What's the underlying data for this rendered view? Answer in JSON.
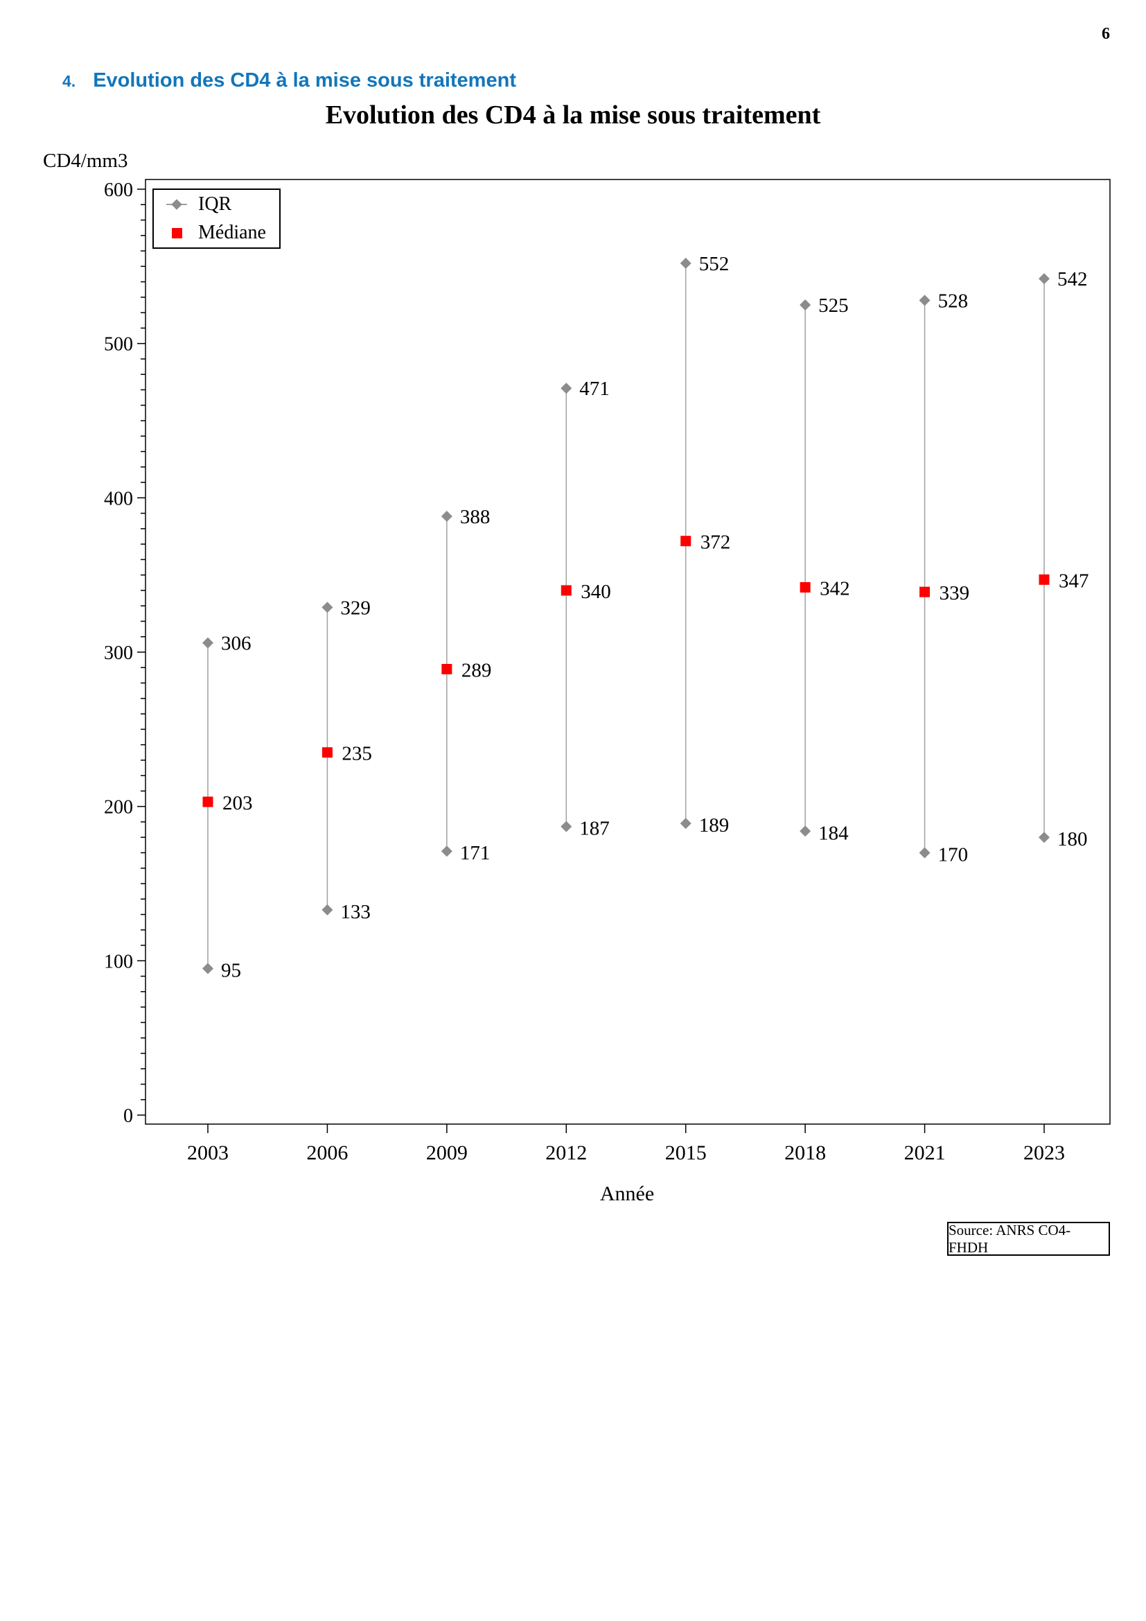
{
  "page": {
    "number": "6"
  },
  "heading": {
    "number": "4.",
    "text": "Evolution des CD4 à la mise sous traitement"
  },
  "source_label": "Source: ANRS CO4-FHDH",
  "chart_data": {
    "type": "scatter",
    "subtype": "vertical-range-dumbbell-with-median",
    "title": "Evolution des CD4 à la mise sous traitement",
    "xlabel": "Année",
    "ylabel": "CD4/mm3",
    "categories": [
      "2003",
      "2006",
      "2009",
      "2012",
      "2015",
      "2018",
      "2021",
      "2023"
    ],
    "series": [
      {
        "name": "IQR",
        "role": "range",
        "upper": [
          306,
          329,
          388,
          471,
          552,
          525,
          528,
          542
        ],
        "lower": [
          95,
          133,
          171,
          187,
          189,
          184,
          170,
          180
        ]
      },
      {
        "name": "Médiane",
        "role": "median",
        "values": [
          203,
          235,
          289,
          340,
          372,
          342,
          339,
          347
        ]
      }
    ],
    "ylim": [
      0,
      600
    ],
    "y_major_step": 100,
    "y_minor_step": 10,
    "grid": false,
    "data_labels": true,
    "legend_position": "top-left-inside",
    "colors": {
      "iqr_marker": "#8C8C8C",
      "iqr_line": "#A0A0A0",
      "median": "#FF0000",
      "axis": "#000000",
      "heading_blue": "#1176BC"
    }
  }
}
